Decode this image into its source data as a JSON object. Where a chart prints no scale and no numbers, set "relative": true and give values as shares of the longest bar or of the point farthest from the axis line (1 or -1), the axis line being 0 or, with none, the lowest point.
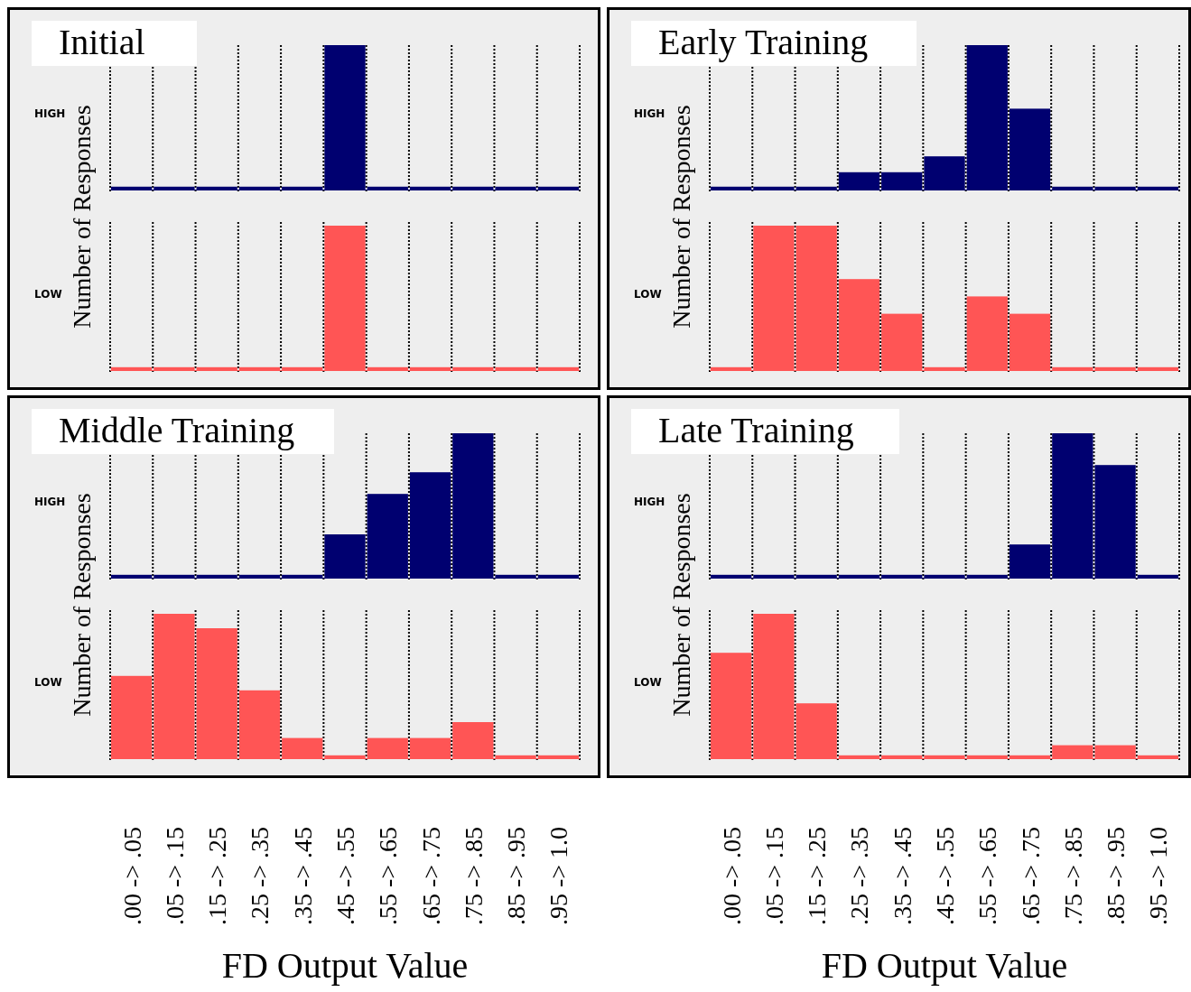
{
  "chart_data": [
    {
      "type": "bar",
      "title": "Initial",
      "ylabel": "Number of Responses",
      "relative": true,
      "grid": "x",
      "tick_labels": false,
      "categories": [
        null,
        null,
        null,
        null,
        null,
        null,
        null,
        null,
        null,
        null,
        null
      ],
      "series": [
        {
          "name": "HIGH",
          "color": "#000070",
          "values": [
            0.02,
            0.02,
            0.02,
            0.02,
            0.02,
            1,
            0.02,
            0.02,
            0.02,
            0.02,
            0.02
          ]
        }
      ]
    },
    {
      "type": "bar",
      "relative": true,
      "grid": "x",
      "tick_labels": false,
      "categories": [
        null,
        null,
        null,
        null,
        null,
        null,
        null,
        null,
        null,
        null,
        null
      ],
      "series": [
        {
          "name": "LOW",
          "color": "#ff5555",
          "values": [
            0.02,
            0.02,
            0.02,
            0.02,
            0.02,
            1,
            0.02,
            0.02,
            0.02,
            0.02,
            0.02
          ]
        }
      ]
    },
    {
      "type": "bar",
      "title": "Early Training",
      "ylabel": "Number of Responses",
      "relative": true,
      "grid": "x",
      "tick_labels": false,
      "categories": [
        null,
        null,
        null,
        null,
        null,
        null,
        null,
        null,
        null,
        null,
        null
      ],
      "series": [
        {
          "name": "HIGH",
          "color": "#000070",
          "values": [
            0.02,
            0.02,
            0.02,
            0.12,
            0.12,
            0.23,
            1,
            0.56,
            0.02,
            0.02,
            0.02
          ]
        }
      ]
    },
    {
      "type": "bar",
      "relative": true,
      "grid": "x",
      "tick_labels": false,
      "categories": [
        null,
        null,
        null,
        null,
        null,
        null,
        null,
        null,
        null,
        null,
        null
      ],
      "series": [
        {
          "name": "LOW",
          "color": "#ff5555",
          "values": [
            0.02,
            1,
            1,
            0.63,
            0.39,
            0.02,
            0.51,
            0.39,
            0.02,
            0.02,
            0.02
          ]
        }
      ]
    },
    {
      "type": "bar",
      "title": "Middle Training",
      "ylabel": "Number of Responses",
      "relative": true,
      "grid": "x",
      "tick_labels": false,
      "categories": [
        null,
        null,
        null,
        null,
        null,
        null,
        null,
        null,
        null,
        null,
        null
      ],
      "series": [
        {
          "name": "HIGH",
          "color": "#000070",
          "values": [
            0.02,
            0.02,
            0.02,
            0.02,
            0.02,
            0.3,
            0.58,
            0.73,
            1,
            0.02,
            0.02
          ]
        }
      ]
    },
    {
      "type": "bar",
      "xlabel": "FD Output Value",
      "relative": true,
      "grid": "x",
      "tick_labels": "x",
      "categories": [
        ".00 -> .05",
        ".05 -> .15",
        ".15 -> .25",
        ".25 -> .35",
        ".35 -> .45",
        ".45 -> .55",
        ".55 -> .65",
        ".65 -> .75",
        ".75 -> .85",
        ".85 -> .95",
        ".95 -> 1.0"
      ],
      "series": [
        {
          "name": "LOW",
          "color": "#ff5555",
          "values": [
            0.57,
            1,
            0.9,
            0.47,
            0.14,
            0.02,
            0.14,
            0.14,
            0.25,
            0.02,
            0.02
          ]
        }
      ]
    },
    {
      "type": "bar",
      "title": "Late Training",
      "ylabel": "Number of Responses",
      "relative": true,
      "grid": "x",
      "tick_labels": false,
      "categories": [
        null,
        null,
        null,
        null,
        null,
        null,
        null,
        null,
        null,
        null,
        null
      ],
      "series": [
        {
          "name": "HIGH",
          "color": "#000070",
          "values": [
            0.02,
            0.02,
            0.02,
            0.02,
            0.02,
            0.02,
            0.02,
            0.23,
            1,
            0.78,
            0.02
          ]
        }
      ]
    },
    {
      "type": "bar",
      "xlabel": "FD Output Value",
      "relative": true,
      "grid": "x",
      "tick_labels": "x",
      "categories": [
        ".00 -> .05",
        ".05 -> .15",
        ".15 -> .25",
        ".25 -> .35",
        ".35 -> .45",
        ".45 -> .55",
        ".55 -> .65",
        ".65 -> .75",
        ".75 -> .85",
        ".85 -> .95",
        ".95 -> 1.0"
      ],
      "series": [
        {
          "name": "LOW",
          "color": "#ff5555",
          "values": [
            0.73,
            1,
            0.38,
            0.02,
            0.02,
            0.02,
            0.02,
            0.02,
            0.09,
            0.09,
            0.02
          ]
        }
      ]
    }
  ]
}
